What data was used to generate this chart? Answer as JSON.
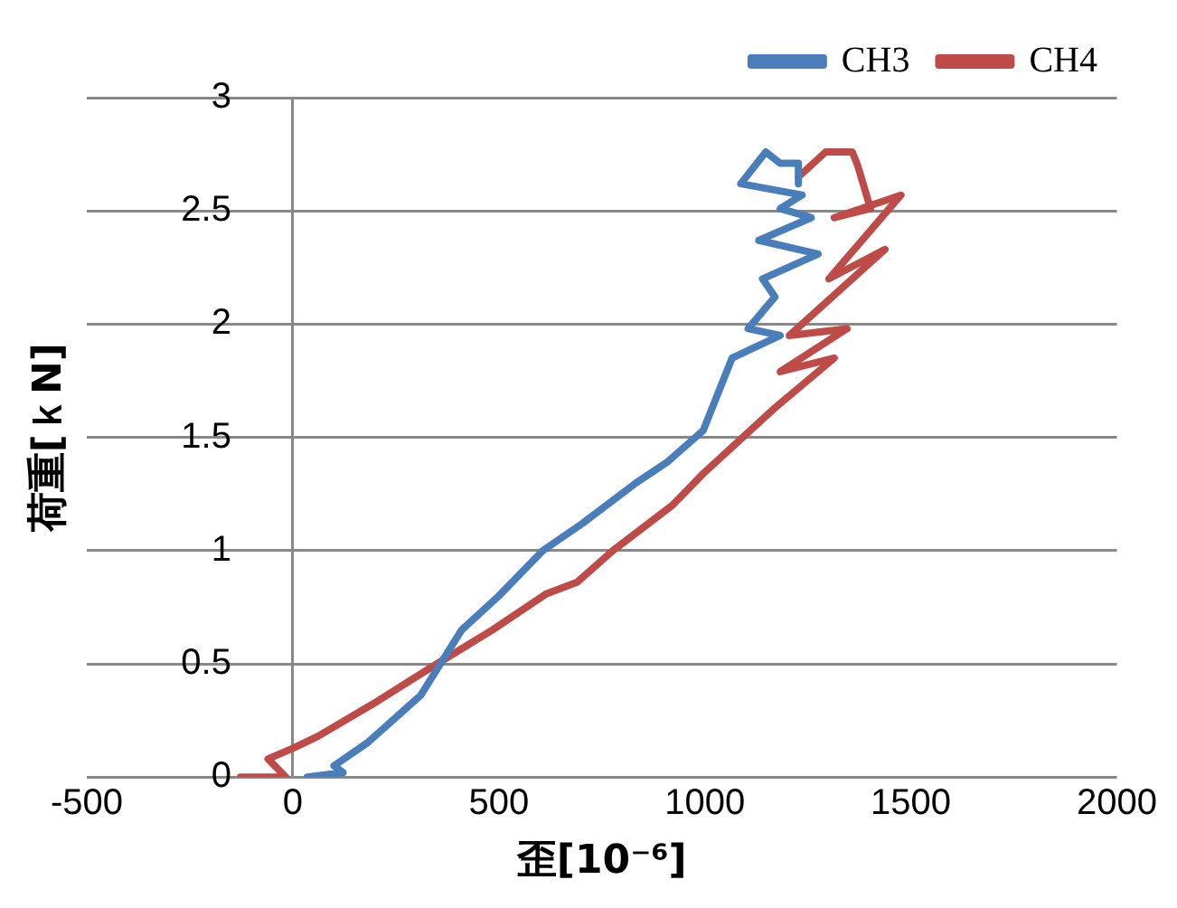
{
  "chart_data": {
    "type": "line",
    "xlabel": "歪[10⁻⁶]",
    "ylabel": "荷重[ｋN]",
    "xlim": [
      -500,
      2000
    ],
    "xticks": [
      -500,
      0,
      500,
      1000,
      1500,
      2000
    ],
    "ylim": [
      0,
      3
    ],
    "yticks": [
      0,
      0.5,
      1,
      1.5,
      2,
      2.5,
      3
    ],
    "grid": "y",
    "legend": "top right",
    "marker": "none",
    "line_style": "solid",
    "series": [
      {
        "name": "CH3",
        "color": "#4a7ebb",
        "x": [
          35,
          122,
          100,
          180,
          310,
          410,
          500,
          607,
          703,
          834,
          908,
          996,
          1066,
          1183,
          1105,
          1170,
          1140,
          1275,
          1131,
          1258,
          1183,
          1236,
          1087,
          1148,
          1183,
          1227,
          1227
        ],
        "values": [
          0,
          0.02,
          0.05,
          0.15,
          0.36,
          0.65,
          0.8,
          1.0,
          1.12,
          1.3,
          1.39,
          1.53,
          1.85,
          1.95,
          1.98,
          2.12,
          2.2,
          2.31,
          2.37,
          2.47,
          2.51,
          2.57,
          2.62,
          2.76,
          2.71,
          2.71,
          2.62
        ]
      },
      {
        "name": "CH4",
        "color": "#be4b48",
        "x": [
          -127,
          -17,
          -60,
          4,
          61,
          192,
          341,
          485,
          616,
          690,
          777,
          921,
          996,
          1170,
          1314,
          1183,
          1345,
          1205,
          1437,
          1301,
          1476,
          1314,
          1402,
          1371,
          1358,
          1293,
          1227
        ],
        "values": [
          0,
          0,
          0.08,
          0.13,
          0.18,
          0.32,
          0.49,
          0.65,
          0.81,
          0.86,
          1.0,
          1.2,
          1.34,
          1.63,
          1.85,
          1.79,
          1.98,
          1.95,
          2.33,
          2.2,
          2.57,
          2.47,
          2.51,
          2.7,
          2.76,
          2.76,
          2.65
        ]
      }
    ]
  }
}
